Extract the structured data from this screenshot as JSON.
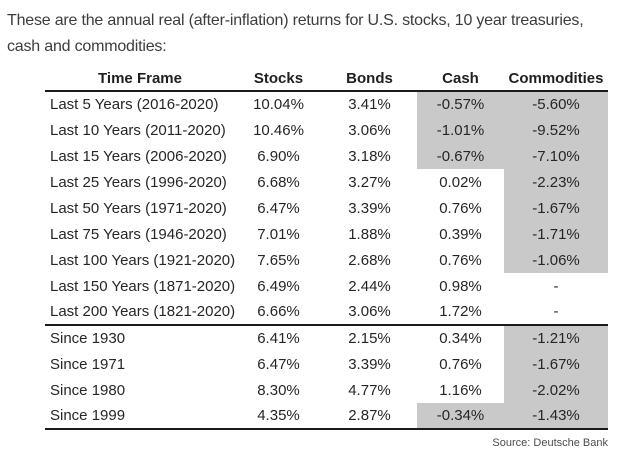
{
  "intro": {
    "line1": "These are the annual real (after-inflation) returns for U.S. stocks, 10 year treasuries,",
    "line2": "cash and commodities:"
  },
  "chart_data": {
    "type": "table",
    "columns": [
      "Time Frame",
      "Stocks",
      "Bonds",
      "Cash",
      "Commodities"
    ],
    "rows": [
      {
        "label": "Last 5 Years (2016-2020)",
        "values": [
          "10.04%",
          "3.41%",
          "-0.57%",
          "-5.60%"
        ],
        "shaded": [
          false,
          false,
          true,
          true
        ]
      },
      {
        "label": "Last 10 Years (2011-2020)",
        "values": [
          "10.46%",
          "3.06%",
          "-1.01%",
          "-9.52%"
        ],
        "shaded": [
          false,
          false,
          true,
          true
        ]
      },
      {
        "label": "Last 15 Years (2006-2020)",
        "values": [
          "6.90%",
          "3.18%",
          "-0.67%",
          "-7.10%"
        ],
        "shaded": [
          false,
          false,
          true,
          true
        ]
      },
      {
        "label": "Last 25 Years (1996-2020)",
        "values": [
          "6.68%",
          "3.27%",
          "0.02%",
          "-2.23%"
        ],
        "shaded": [
          false,
          false,
          false,
          true
        ]
      },
      {
        "label": "Last 50 Years (1971-2020)",
        "values": [
          "6.47%",
          "3.39%",
          "0.76%",
          "-1.67%"
        ],
        "shaded": [
          false,
          false,
          false,
          true
        ]
      },
      {
        "label": "Last 75 Years (1946-2020)",
        "values": [
          "7.01%",
          "1.88%",
          "0.39%",
          "-1.71%"
        ],
        "shaded": [
          false,
          false,
          false,
          true
        ]
      },
      {
        "label": "Last 100 Years (1921-2020)",
        "values": [
          "7.65%",
          "2.68%",
          "0.76%",
          "-1.06%"
        ],
        "shaded": [
          false,
          false,
          false,
          true
        ]
      },
      {
        "label": "Last 150 Years (1871-2020)",
        "values": [
          "6.49%",
          "2.44%",
          "0.98%",
          "-"
        ],
        "shaded": [
          false,
          false,
          false,
          false
        ]
      },
      {
        "label": "Last 200 Years (1821-2020)",
        "values": [
          "6.66%",
          "3.06%",
          "1.72%",
          "-"
        ],
        "shaded": [
          false,
          false,
          false,
          false
        ]
      },
      {
        "label": "Since 1930",
        "values": [
          "6.41%",
          "2.15%",
          "0.34%",
          "-1.21%"
        ],
        "shaded": [
          false,
          false,
          false,
          true
        ]
      },
      {
        "label": "Since 1971",
        "values": [
          "6.47%",
          "3.39%",
          "0.76%",
          "-1.67%"
        ],
        "shaded": [
          false,
          false,
          false,
          true
        ]
      },
      {
        "label": "Since 1980",
        "values": [
          "8.30%",
          "4.77%",
          "1.16%",
          "-2.02%"
        ],
        "shaded": [
          false,
          false,
          false,
          true
        ]
      },
      {
        "label": "Since 1999",
        "values": [
          "4.35%",
          "2.87%",
          "-0.34%",
          "-1.43%"
        ],
        "shaded": [
          false,
          false,
          true,
          true
        ]
      }
    ],
    "section_break_after_row": 8,
    "source_note": "Source: Deutsche Bank"
  },
  "colors": {
    "shading": "#c9c9c9",
    "rule": "#1a1a1a",
    "table_text": "#262626",
    "intro_text": "#3c3c3c",
    "source_text": "#4d4d4d"
  }
}
